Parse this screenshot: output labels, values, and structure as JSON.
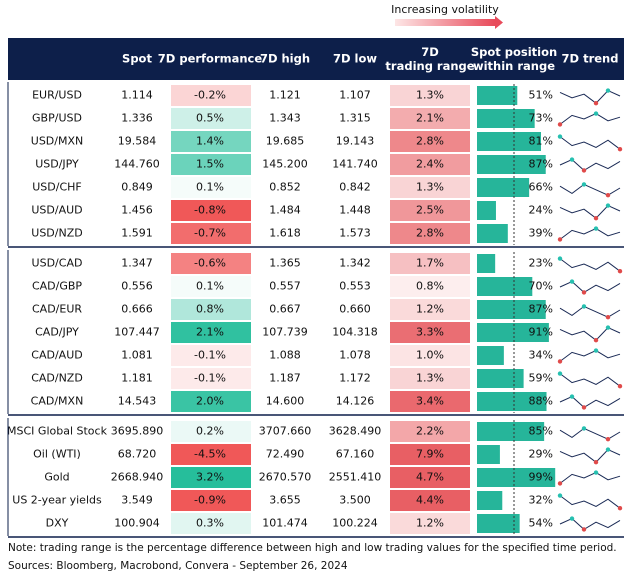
{
  "legend": "Increasing volatility",
  "header": [
    "Spot",
    "7D performance",
    "7D high",
    "7D low",
    "7D trading range",
    "Spot position within range",
    "7D trend"
  ],
  "groups": [
    {
      "rows": [
        [
          "EUR/USD",
          "1.114",
          "-0.2%",
          "1.121",
          "1.107",
          "1.3%",
          "51%"
        ],
        [
          "GBP/USD",
          "1.336",
          "0.5%",
          "1.343",
          "1.315",
          "2.1%",
          "73%"
        ],
        [
          "USD/MXN",
          "19.584",
          "1.4%",
          "19.685",
          "19.143",
          "2.8%",
          "81%"
        ],
        [
          "USD/JPY",
          "144.760",
          "1.5%",
          "145.200",
          "141.740",
          "2.4%",
          "87%"
        ],
        [
          "USD/CHF",
          "0.849",
          "0.1%",
          "0.852",
          "0.842",
          "1.3%",
          "66%"
        ],
        [
          "USD/AUD",
          "1.456",
          "-0.8%",
          "1.484",
          "1.448",
          "2.5%",
          "24%"
        ],
        [
          "USD/NZD",
          "1.591",
          "-0.7%",
          "1.618",
          "1.573",
          "2.8%",
          "39%"
        ]
      ]
    },
    {
      "rows": [
        [
          "USD/CAD",
          "1.347",
          "-0.6%",
          "1.365",
          "1.342",
          "1.7%",
          "23%"
        ],
        [
          "CAD/GBP",
          "0.556",
          "0.1%",
          "0.557",
          "0.553",
          "0.8%",
          "70%"
        ],
        [
          "CAD/EUR",
          "0.666",
          "0.8%",
          "0.667",
          "0.660",
          "1.2%",
          "87%"
        ],
        [
          "CAD/JPY",
          "107.447",
          "2.1%",
          "107.739",
          "104.318",
          "3.3%",
          "91%"
        ],
        [
          "CAD/AUD",
          "1.081",
          "-0.1%",
          "1.088",
          "1.078",
          "1.0%",
          "34%"
        ],
        [
          "CAD/NZD",
          "1.181",
          "-0.1%",
          "1.187",
          "1.172",
          "1.3%",
          "59%"
        ],
        [
          "CAD/MXN",
          "14.543",
          "2.0%",
          "14.600",
          "14.126",
          "3.4%",
          "88%"
        ]
      ]
    },
    {
      "rows": [
        [
          "MSCI Global Stock",
          "3695.890",
          "0.2%",
          "3707.660",
          "3628.490",
          "2.2%",
          "85%"
        ],
        [
          "Oil (WTI)",
          "68.720",
          "-4.5%",
          "72.490",
          "67.160",
          "7.9%",
          "29%"
        ],
        [
          "Gold",
          "2668.940",
          "3.2%",
          "2670.570",
          "2551.410",
          "4.7%",
          "99%"
        ],
        [
          "US 2-year yields",
          "3.549",
          "-0.9%",
          "3.655",
          "3.500",
          "4.4%",
          "32%"
        ],
        [
          "DXY",
          "100.904",
          "0.3%",
          "101.474",
          "100.224",
          "1.2%",
          "54%"
        ]
      ]
    }
  ],
  "note": "Note: trading range is the percentage difference between high and low trading values for the specified time period.",
  "sources": "Sources: Bloomberg, Macrobond, Convera - September 26, 2024"
}
